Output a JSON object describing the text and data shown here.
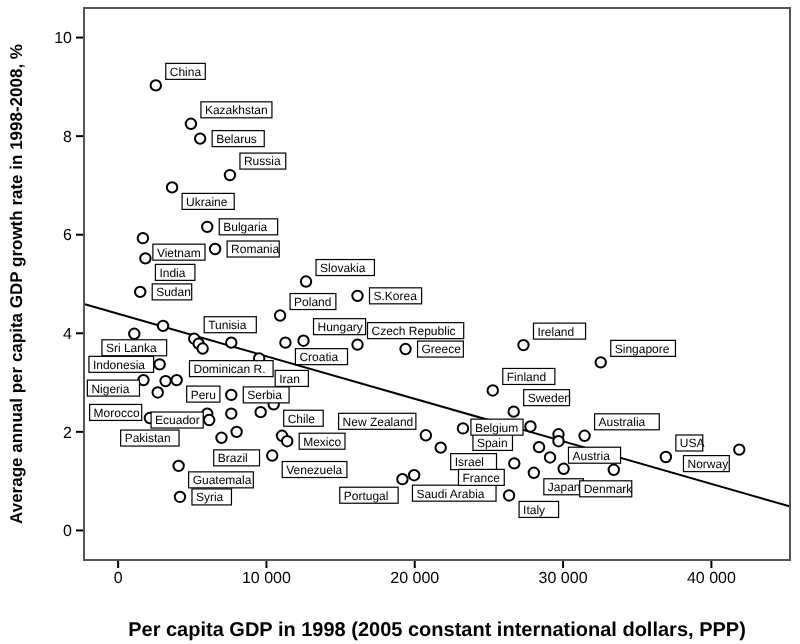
{
  "chart_data": {
    "type": "scatter",
    "xlabel": "Per capita GDP in 1998 (2005 constant international dollars, PPP)",
    "ylabel": "Average annual per capita GDP growth rate in 1998-2008, %",
    "xlim": [
      -2300,
      45300
    ],
    "ylim": [
      -0.6,
      10.6
    ],
    "xticks": [
      0,
      {
        "value": 10000,
        "label": "10 000"
      },
      {
        "value": 20000,
        "label": "20 000"
      },
      {
        "value": 30000,
        "label": "30 000"
      },
      {
        "value": 40000,
        "label": "40 000"
      }
    ],
    "yticks": [
      0,
      2,
      4,
      6,
      8,
      10
    ],
    "grid": false,
    "legend": false,
    "marker": "circle",
    "series": [
      {
        "type": "scatter",
        "color": "#000000",
        "x": [
          2540,
          4910,
          5530,
          7540,
          3640,
          6010,
          6540,
          1670,
          1840,
          1490,
          12670,
          16140,
          10920,
          1090,
          3030,
          5130,
          5430,
          5700,
          7630,
          11280,
          12500,
          9510,
          16140,
          2800,
          3950,
          1710,
          3200,
          2670,
          7630,
          10490,
          2140,
          6010,
          6140,
          7630,
          9610,
          11050,
          11400,
          7990,
          6970,
          10390,
          4080,
          4170,
          19170,
          20750,
          19380,
          27330,
          32540,
          25260,
          26670,
          23250,
          27800,
          31450,
          29690,
          29690,
          21750,
          28380,
          29120,
          19960,
          26710,
          28030,
          26360,
          30040,
          33420,
          36930,
          41880
        ],
        "values": [
          9.03,
          8.25,
          7.95,
          7.21,
          6.96,
          6.16,
          5.71,
          5.93,
          5.52,
          4.84,
          5.05,
          4.76,
          4.36,
          3.99,
          4.15,
          3.89,
          3.79,
          3.69,
          3.81,
          3.81,
          3.85,
          3.49,
          3.77,
          3.37,
          3.05,
          3.05,
          3.03,
          2.8,
          2.75,
          2.56,
          2.28,
          2.37,
          2.24,
          2.37,
          2.4,
          1.92,
          1.81,
          2.0,
          1.88,
          1.52,
          1.31,
          0.68,
          1.04,
          1.93,
          3.68,
          3.76,
          3.41,
          2.84,
          2.41,
          2.07,
          2.11,
          1.92,
          1.95,
          1.81,
          1.68,
          1.69,
          1.48,
          1.12,
          1.36,
          1.17,
          0.71,
          1.25,
          1.23,
          1.49,
          1.64
        ]
      },
      {
        "type": "line",
        "color": "#000000",
        "marker": "none",
        "x": [
          -2240,
          45260
        ],
        "values": [
          4.59,
          0.49
        ]
      }
    ],
    "annotations": [
      {
        "text": "China",
        "x": 2540,
        "y": 9.03
      },
      {
        "text": "Kazakhstan",
        "x": 4910,
        "y": 8.25
      },
      {
        "text": "Belarus",
        "x": 5530,
        "y": 7.95
      },
      {
        "text": "Russia",
        "x": 7540,
        "y": 7.21
      },
      {
        "text": "Ukraine",
        "x": 3640,
        "y": 6.96
      },
      {
        "text": "Bulgaria",
        "x": 6010,
        "y": 6.16
      },
      {
        "text": "Romania",
        "x": 6540,
        "y": 5.71
      },
      {
        "text": "Vietnam",
        "x": 1670,
        "y": 5.93
      },
      {
        "text": "India",
        "x": 1840,
        "y": 5.52
      },
      {
        "text": "Sudan",
        "x": 1490,
        "y": 4.84
      },
      {
        "text": "Slovakia",
        "x": 12670,
        "y": 5.05
      },
      {
        "text": "S.Korea",
        "x": 16140,
        "y": 4.76
      },
      {
        "text": "Poland",
        "x": 10920,
        "y": 4.36
      },
      {
        "text": "Sri Lanka",
        "x": 1090,
        "y": 3.99
      },
      {
        "text": "Tunisia",
        "x": 5130,
        "y": 3.89
      },
      {
        "text": "Dominican R.",
        "x": 7630,
        "y": 3.81
      },
      {
        "text": "Hungary",
        "x": 12500,
        "y": 3.85
      },
      {
        "text": "Croatia",
        "x": 11280,
        "y": 3.81
      },
      {
        "text": "Iran",
        "x": 9510,
        "y": 3.49
      },
      {
        "text": "Czech Republic",
        "x": 16140,
        "y": 3.77
      },
      {
        "text": "Indonesia",
        "x": 2800,
        "y": 3.37
      },
      {
        "text": "Peru",
        "x": 3950,
        "y": 3.05
      },
      {
        "text": "Nigeria",
        "x": 1710,
        "y": 3.05
      },
      {
        "text": "Morocco",
        "x": 2670,
        "y": 2.8
      },
      {
        "text": "Serbia",
        "x": 7630,
        "y": 2.75
      },
      {
        "text": "Chile",
        "x": 10490,
        "y": 2.56
      },
      {
        "text": "Pakistan",
        "x": 2140,
        "y": 2.28
      },
      {
        "text": "Ecuador",
        "x": 6140,
        "y": 2.24
      },
      {
        "text": "Brazil",
        "x": 7990,
        "y": 2.0
      },
      {
        "text": "Mexico",
        "x": 11400,
        "y": 1.81
      },
      {
        "text": "Venezuela",
        "x": 10390,
        "y": 1.52
      },
      {
        "text": "Guatemala",
        "x": 4080,
        "y": 1.31
      },
      {
        "text": "Syria",
        "x": 4170,
        "y": 0.68
      },
      {
        "text": "Saudi Arabia",
        "x": 19170,
        "y": 1.04
      },
      {
        "text": "New Zealand",
        "x": 20750,
        "y": 1.93
      },
      {
        "text": "Greece",
        "x": 19380,
        "y": 3.68
      },
      {
        "text": "Ireland",
        "x": 27330,
        "y": 3.76
      },
      {
        "text": "Singapore",
        "x": 32540,
        "y": 3.41
      },
      {
        "text": "Finland",
        "x": 25260,
        "y": 2.84
      },
      {
        "text": "Sweden",
        "x": 26670,
        "y": 2.41
      },
      {
        "text": "Spain",
        "x": 23250,
        "y": 2.07
      },
      {
        "text": "Australia",
        "x": 31450,
        "y": 1.92
      },
      {
        "text": "Austria",
        "x": 29690,
        "y": 1.81
      },
      {
        "text": "Israel",
        "x": 21750,
        "y": 1.68
      },
      {
        "text": "Belgium",
        "x": 28380,
        "y": 1.69
      },
      {
        "text": "Portugal",
        "x": 19960,
        "y": 1.12
      },
      {
        "text": "France",
        "x": 26710,
        "y": 1.36
      },
      {
        "text": "Japan",
        "x": 28030,
        "y": 1.17
      },
      {
        "text": "Italy",
        "x": 26360,
        "y": 0.71
      },
      {
        "text": "Denmark",
        "x": 30040,
        "y": 1.25
      },
      {
        "text": "USA",
        "x": 36930,
        "y": 1.49
      },
      {
        "text": "Norway",
        "x": 41880,
        "y": 1.64
      }
    ]
  }
}
